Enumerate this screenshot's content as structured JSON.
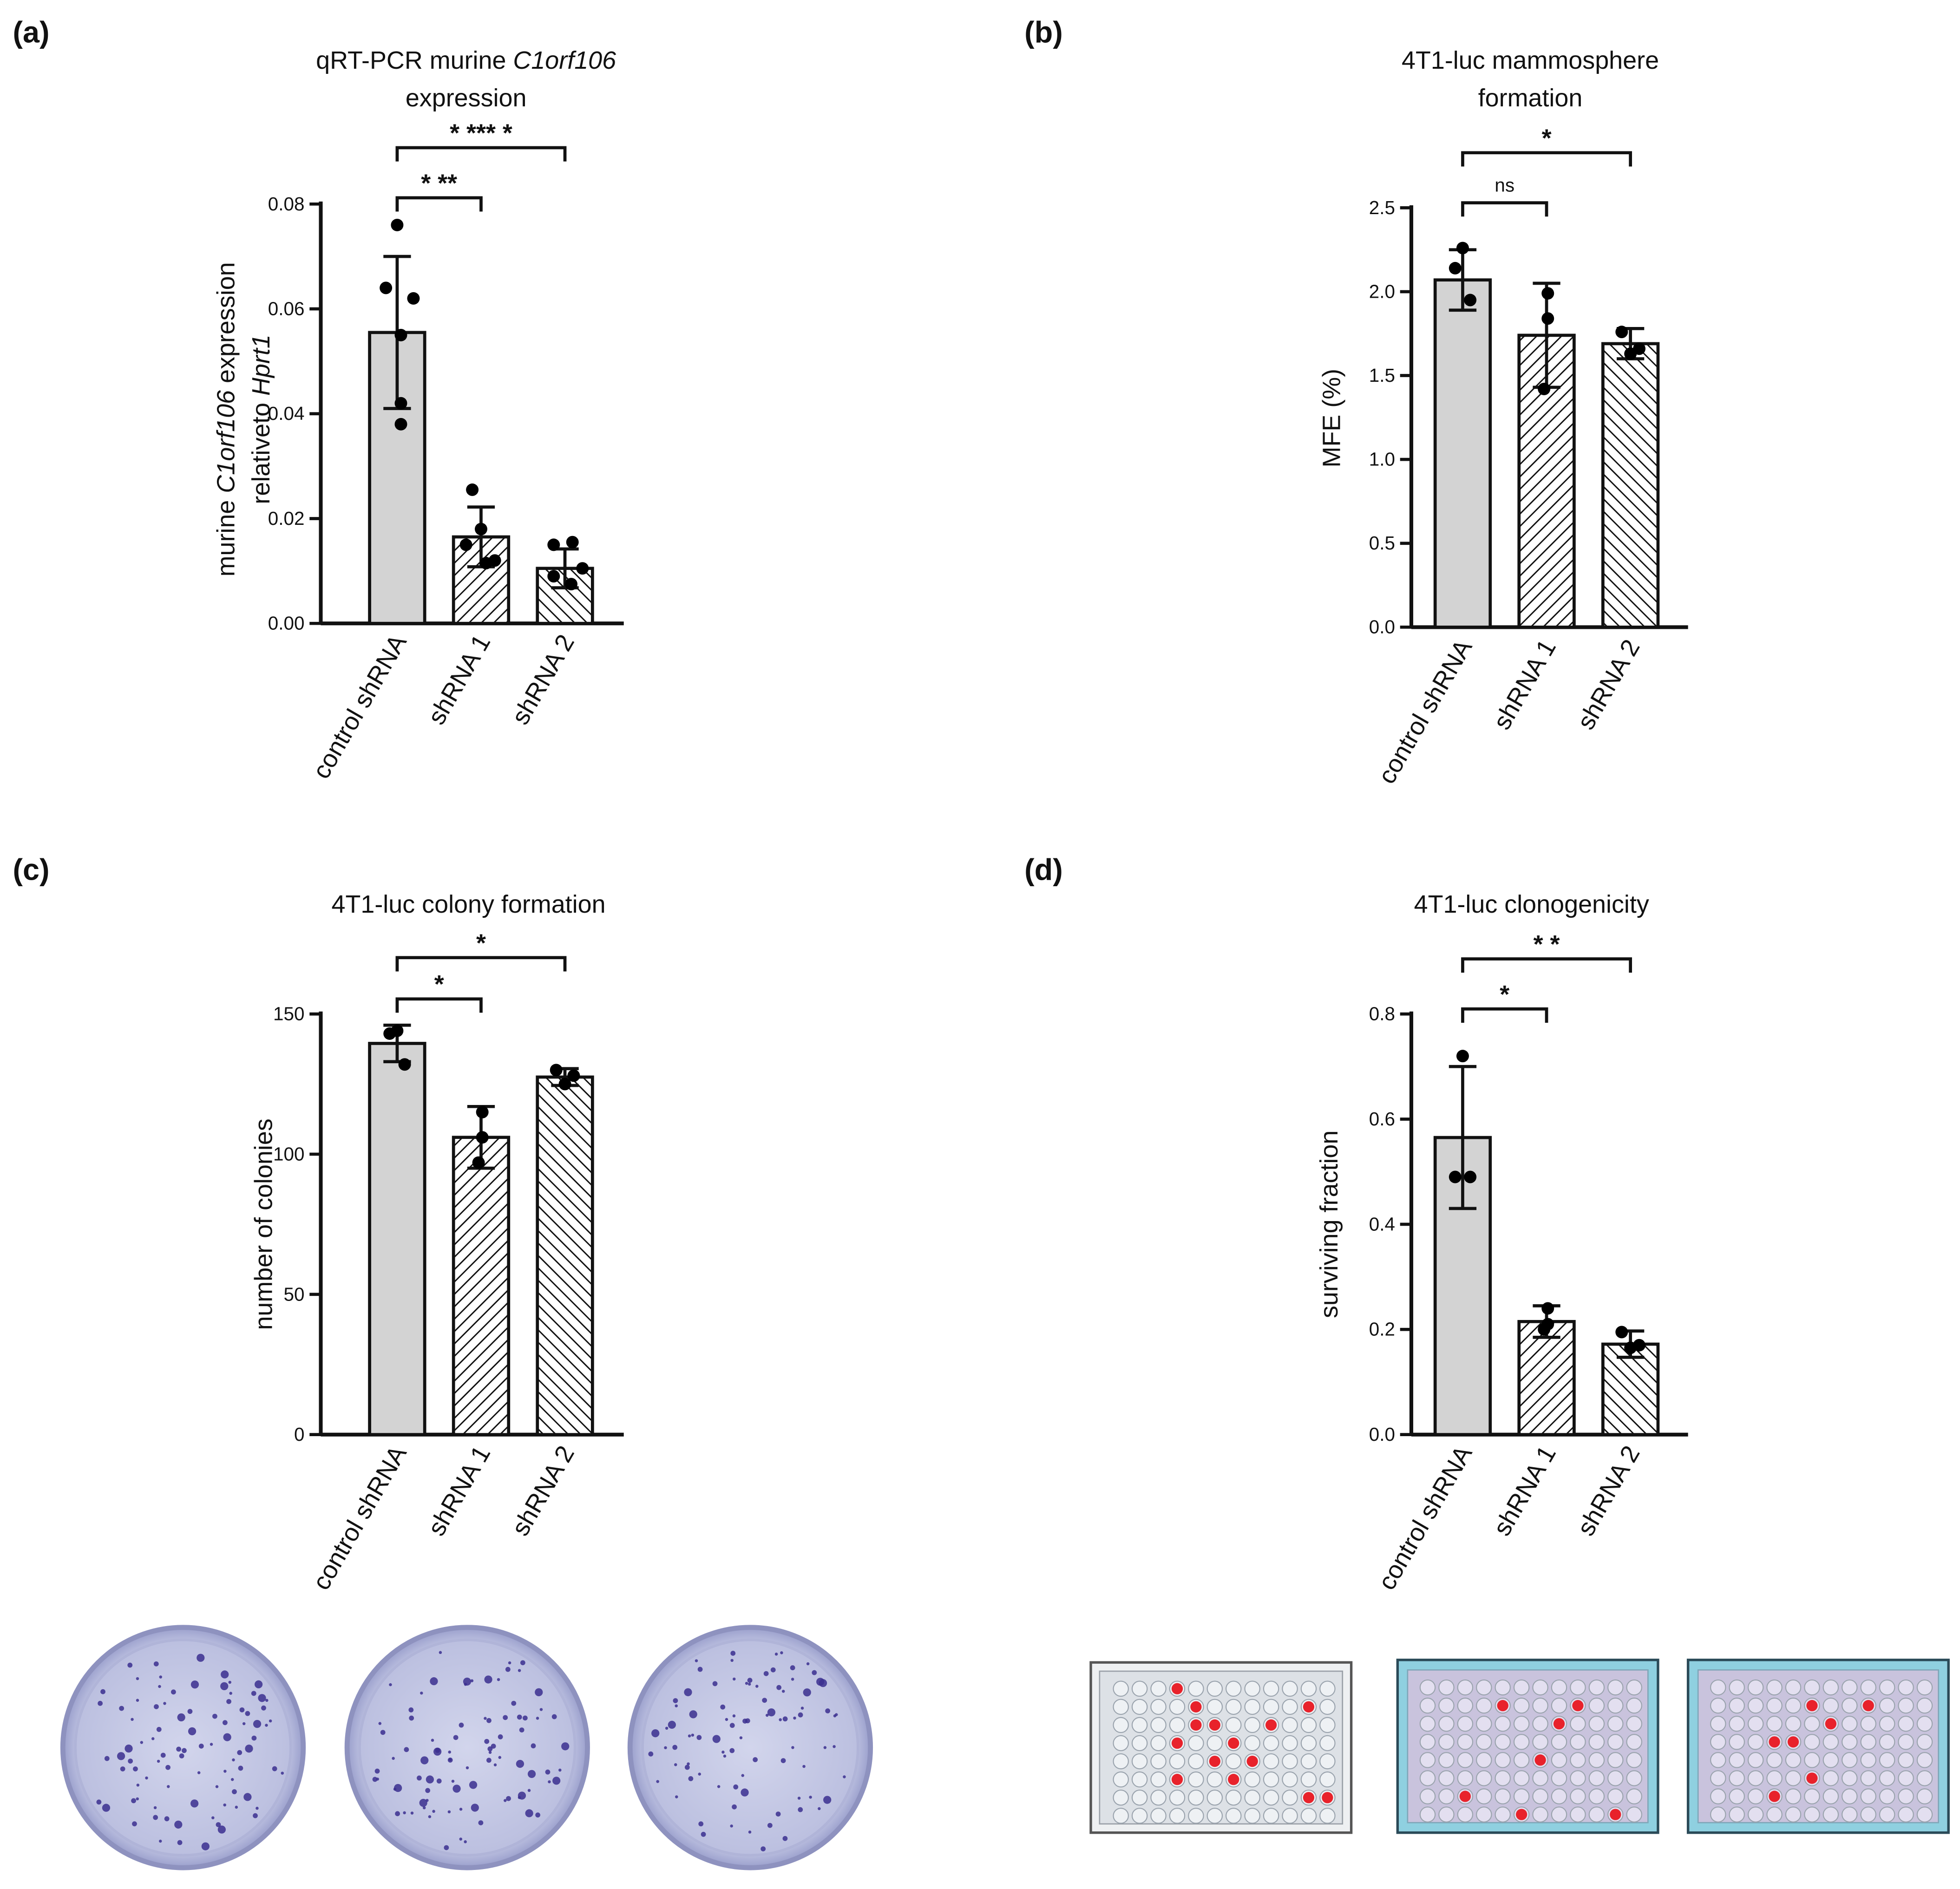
{
  "colors": {
    "control_fill": "#d3d3d3",
    "stroke": "#111111",
    "dot": "#000000",
    "dish_bg": "#c7cbe6",
    "colony": "#3b2f8f",
    "plate_bg": "#d9dde2",
    "plate_blue": "#8fd0e0",
    "well_red": "#e8222b"
  },
  "panels": [
    {
      "label": "(a)",
      "title_parts": [
        "qRT-PCR murine ",
        "C1orf106",
        "expression"
      ],
      "ylabel_parts": [
        "murine ",
        "C1orf106",
        " expression",
        "relativeto ",
        "Hprt1"
      ],
      "tick_labels": [
        "0.00",
        "0.02",
        "0.04",
        "0.06",
        "0.08"
      ],
      "significance": [
        "* **",
        "* *** *"
      ],
      "categories": [
        "control shRNA",
        "shRNA 1",
        "shRNA 2"
      ]
    },
    {
      "label": "(b)",
      "title_parts": [
        "4T1-luc mammosphere",
        "formation"
      ],
      "ylabel": "MFE (%)",
      "tick_labels": [
        "0.0",
        "0.5",
        "1.0",
        "1.5",
        "2.0",
        "2.5"
      ],
      "significance": [
        "ns",
        "*"
      ],
      "categories": [
        "control shRNA",
        "shRNA 1",
        "shRNA 2"
      ]
    },
    {
      "label": "(c)",
      "title_parts": [
        "4T1-luc colony formation"
      ],
      "ylabel": "number of colonies",
      "tick_labels": [
        "0",
        "50",
        "100",
        "150"
      ],
      "significance": [
        "*",
        "*"
      ],
      "categories": [
        "control shRNA",
        "shRNA 1",
        "shRNA 2"
      ]
    },
    {
      "label": "(d)",
      "title_parts": [
        "4T1-luc clonogenicity"
      ],
      "ylabel": "surviving fraction",
      "tick_labels": [
        "0.0",
        "0.2",
        "0.4",
        "0.6",
        "0.8"
      ],
      "significance": [
        "*",
        "* *"
      ],
      "categories": [
        "control shRNA",
        "shRNA 1",
        "shRNA 2"
      ]
    }
  ],
  "chart_data": [
    {
      "type": "bar",
      "panel": "(a)",
      "title": "qRT-PCR murine C1orf106 expression",
      "ylabel": "murine C1orf106 expression relativeto Hprt1",
      "ylim": [
        0,
        0.08
      ],
      "yticks": [
        0,
        0.02,
        0.04,
        0.06,
        0.08
      ],
      "categories": [
        "control shRNA",
        "shRNA 1",
        "shRNA 2"
      ],
      "values": [
        0.0555,
        0.0165,
        0.0105
      ],
      "errors": [
        0.0145,
        0.0057,
        0.0037
      ],
      "points": [
        [
          0.076,
          0.064,
          0.062,
          0.055,
          0.042,
          0.038
        ],
        [
          0.0255,
          0.018,
          0.015,
          0.012,
          0.0115
        ],
        [
          0.0155,
          0.015,
          0.0105,
          0.009,
          0.0075
        ]
      ],
      "significance": [
        {
          "pair": [
            0,
            1
          ],
          "label": "* **"
        },
        {
          "pair": [
            0,
            2
          ],
          "label": "* *** *"
        }
      ]
    },
    {
      "type": "bar",
      "panel": "(b)",
      "title": "4T1-luc mammosphere formation",
      "ylabel": "MFE (%)",
      "ylim": [
        0,
        2.5
      ],
      "yticks": [
        0,
        0.5,
        1.0,
        1.5,
        2.0,
        2.5
      ],
      "categories": [
        "control shRNA",
        "shRNA 1",
        "shRNA 2"
      ],
      "values": [
        2.07,
        1.74,
        1.69
      ],
      "errors": [
        0.18,
        0.31,
        0.09
      ],
      "points": [
        [
          2.26,
          2.14,
          1.95
        ],
        [
          1.99,
          1.84,
          1.42
        ],
        [
          1.76,
          1.66,
          1.63
        ]
      ],
      "significance": [
        {
          "pair": [
            0,
            1
          ],
          "label": "ns"
        },
        {
          "pair": [
            0,
            2
          ],
          "label": "*"
        }
      ]
    },
    {
      "type": "bar",
      "panel": "(c)",
      "title": "4T1-luc colony formation",
      "ylabel": "number of colonies",
      "ylim": [
        0,
        150
      ],
      "yticks": [
        0,
        50,
        100,
        150
      ],
      "categories": [
        "control shRNA",
        "shRNA 1",
        "shRNA 2"
      ],
      "values": [
        139.5,
        106,
        127.5
      ],
      "errors": [
        6.5,
        11,
        3
      ],
      "points": [
        [
          144,
          143,
          132
        ],
        [
          115,
          106,
          97
        ],
        [
          130,
          128,
          125
        ]
      ],
      "significance": [
        {
          "pair": [
            0,
            1
          ],
          "label": "*"
        },
        {
          "pair": [
            0,
            2
          ],
          "label": "*"
        }
      ]
    },
    {
      "type": "bar",
      "panel": "(d)",
      "title": "4T1-luc clonogenicity",
      "ylabel": "surviving fraction",
      "ylim": [
        0,
        0.8
      ],
      "yticks": [
        0,
        0.2,
        0.4,
        0.6,
        0.8
      ],
      "categories": [
        "control shRNA",
        "shRNA 1",
        "shRNA 2"
      ],
      "values": [
        0.565,
        0.215,
        0.172
      ],
      "errors": [
        0.135,
        0.03,
        0.025
      ],
      "points": [
        [
          0.72,
          0.49,
          0.49
        ],
        [
          0.24,
          0.21,
          0.2
        ],
        [
          0.195,
          0.17,
          0.165
        ]
      ],
      "significance": [
        {
          "pair": [
            0,
            1
          ],
          "label": "*"
        },
        {
          "pair": [
            0,
            2
          ],
          "label": "* *"
        }
      ]
    }
  ]
}
